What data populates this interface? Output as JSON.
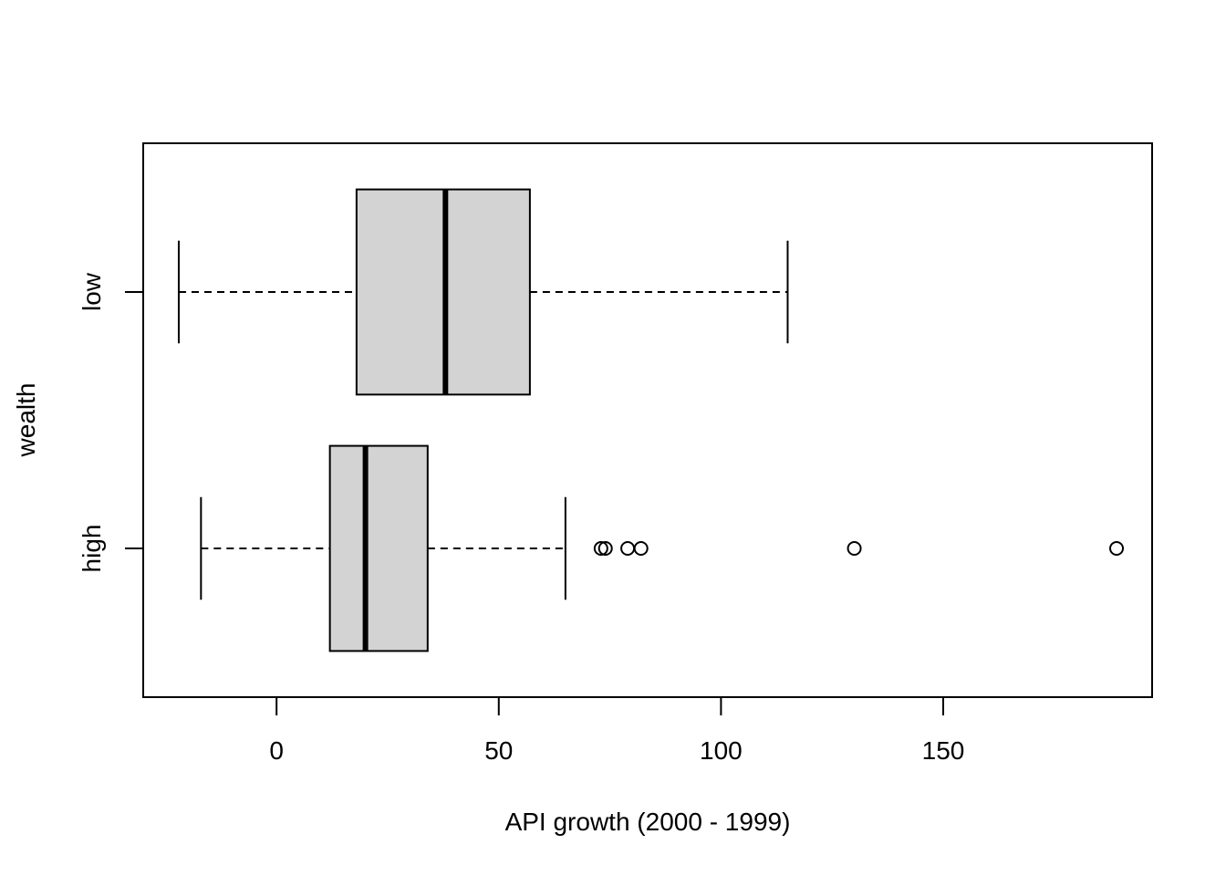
{
  "chart_data": {
    "type": "boxplot",
    "orientation": "horizontal",
    "title": "",
    "xlabel": "API growth (2000 - 1999)",
    "ylabel": "wealth",
    "xlim": [
      -30,
      197
    ],
    "x_ticks": [
      0,
      50,
      100,
      150
    ],
    "x_tick_labels": [
      "0",
      "50",
      "100",
      "150"
    ],
    "grid": false,
    "box_color": "#d3d3d3",
    "line_color": "#000000",
    "groups": [
      {
        "name": "high",
        "whisker_low": -17,
        "q1": 12,
        "median": 20,
        "q3": 34,
        "whisker_high": 65,
        "outliers": [
          73,
          74,
          79,
          82,
          130,
          189
        ]
      },
      {
        "name": "low",
        "whisker_low": -22,
        "q1": 18,
        "median": 38,
        "q3": 57,
        "whisker_high": 115,
        "outliers": []
      }
    ]
  }
}
